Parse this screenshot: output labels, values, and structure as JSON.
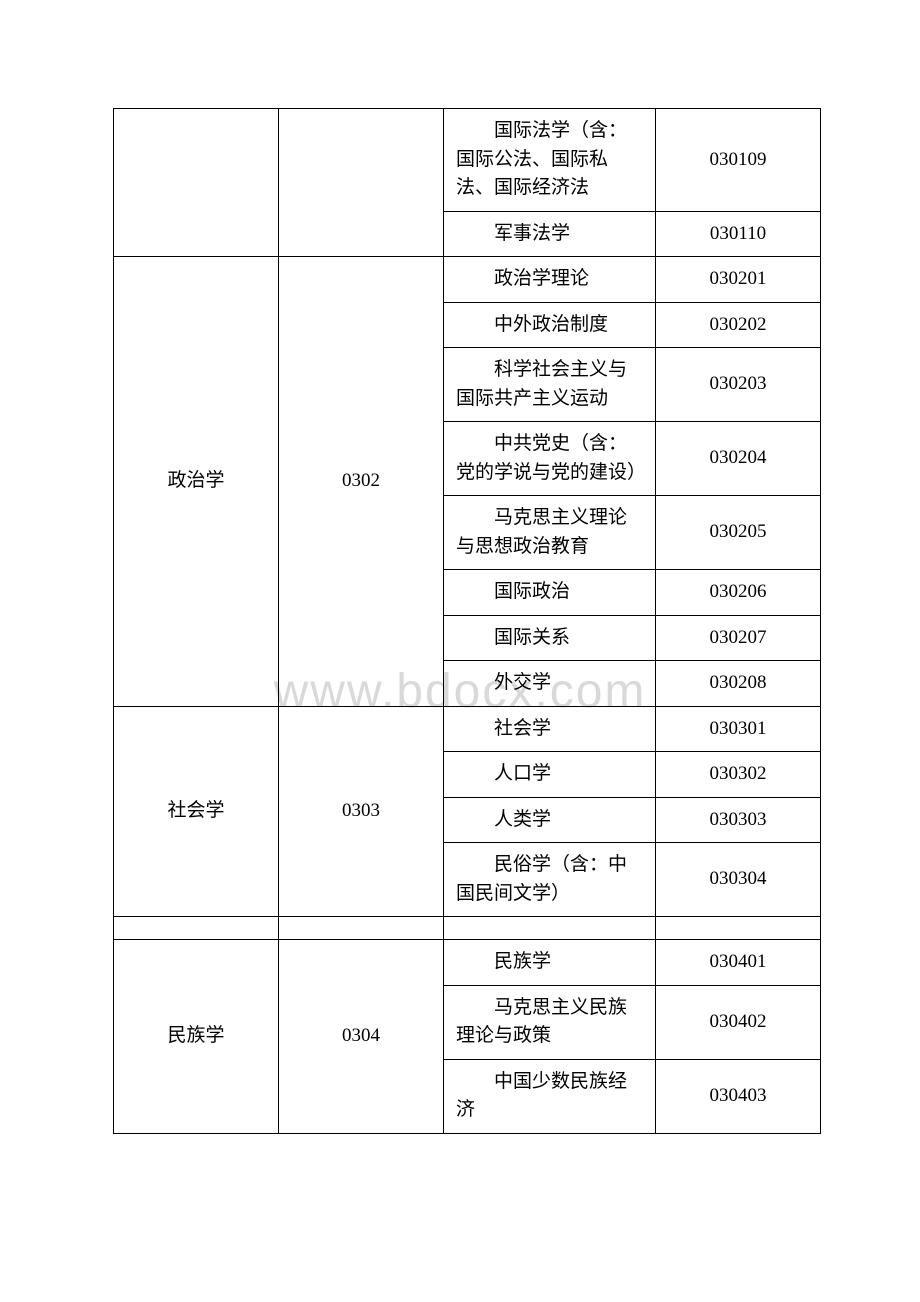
{
  "watermark": "www.bdocx.com",
  "groups": [
    {
      "category": "",
      "code": "",
      "show_category": false,
      "items": [
        {
          "name": "国际法学（含：国际公法、国际私法、国际经济法",
          "code": "030109"
        },
        {
          "name": "军事法学",
          "code": "030110"
        }
      ]
    },
    {
      "category": "政治学",
      "code": "0302",
      "show_category": true,
      "items": [
        {
          "name": "政治学理论",
          "code": "030201"
        },
        {
          "name": "中外政治制度",
          "code": "030202"
        },
        {
          "name": "科学社会主义与国际共产主义运动",
          "code": "030203"
        },
        {
          "name": "中共党史（含：党的学说与党的建设）",
          "code": "030204"
        },
        {
          "name": "马克思主义理论与思想政治教育",
          "code": "030205"
        },
        {
          "name": "国际政治",
          "code": "030206"
        },
        {
          "name": "国际关系",
          "code": "030207"
        },
        {
          "name": "外交学",
          "code": "030208"
        }
      ]
    },
    {
      "category": "社会学",
      "code": "0303",
      "show_category": true,
      "items": [
        {
          "name": "社会学",
          "code": "030301"
        },
        {
          "name": "人口学",
          "code": "030302"
        },
        {
          "name": "人类学",
          "code": "030303"
        },
        {
          "name": "民俗学（含：中国民间文学）",
          "code": "030304"
        }
      ]
    },
    {
      "spacer": true
    },
    {
      "category": "民族学",
      "code": "0304",
      "show_category": true,
      "items": [
        {
          "name": "民族学",
          "code": "030401"
        },
        {
          "name": "马克思主义民族理论与政策",
          "code": "030402"
        },
        {
          "name": "中国少数民族经济",
          "code": "030403"
        }
      ]
    }
  ]
}
